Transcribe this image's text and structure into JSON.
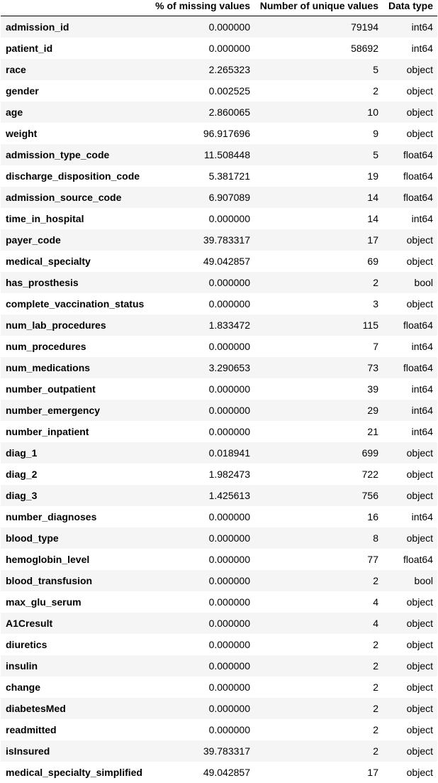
{
  "table": {
    "columns": [
      "",
      "% of missing values",
      "Number of unique values",
      "Data type"
    ],
    "rows": [
      {
        "name": "admission_id",
        "missing": "0.000000",
        "unique": "79194",
        "dtype": "int64"
      },
      {
        "name": "patient_id",
        "missing": "0.000000",
        "unique": "58692",
        "dtype": "int64"
      },
      {
        "name": "race",
        "missing": "2.265323",
        "unique": "5",
        "dtype": "object"
      },
      {
        "name": "gender",
        "missing": "0.002525",
        "unique": "2",
        "dtype": "object"
      },
      {
        "name": "age",
        "missing": "2.860065",
        "unique": "10",
        "dtype": "object"
      },
      {
        "name": "weight",
        "missing": "96.917696",
        "unique": "9",
        "dtype": "object"
      },
      {
        "name": "admission_type_code",
        "missing": "11.508448",
        "unique": "5",
        "dtype": "float64"
      },
      {
        "name": "discharge_disposition_code",
        "missing": "5.381721",
        "unique": "19",
        "dtype": "float64"
      },
      {
        "name": "admission_source_code",
        "missing": "6.907089",
        "unique": "14",
        "dtype": "float64"
      },
      {
        "name": "time_in_hospital",
        "missing": "0.000000",
        "unique": "14",
        "dtype": "int64"
      },
      {
        "name": "payer_code",
        "missing": "39.783317",
        "unique": "17",
        "dtype": "object"
      },
      {
        "name": "medical_specialty",
        "missing": "49.042857",
        "unique": "69",
        "dtype": "object"
      },
      {
        "name": "has_prosthesis",
        "missing": "0.000000",
        "unique": "2",
        "dtype": "bool"
      },
      {
        "name": "complete_vaccination_status",
        "missing": "0.000000",
        "unique": "3",
        "dtype": "object"
      },
      {
        "name": "num_lab_procedures",
        "missing": "1.833472",
        "unique": "115",
        "dtype": "float64"
      },
      {
        "name": "num_procedures",
        "missing": "0.000000",
        "unique": "7",
        "dtype": "int64"
      },
      {
        "name": "num_medications",
        "missing": "3.290653",
        "unique": "73",
        "dtype": "float64"
      },
      {
        "name": "number_outpatient",
        "missing": "0.000000",
        "unique": "39",
        "dtype": "int64"
      },
      {
        "name": "number_emergency",
        "missing": "0.000000",
        "unique": "29",
        "dtype": "int64"
      },
      {
        "name": "number_inpatient",
        "missing": "0.000000",
        "unique": "21",
        "dtype": "int64"
      },
      {
        "name": "diag_1",
        "missing": "0.018941",
        "unique": "699",
        "dtype": "object"
      },
      {
        "name": "diag_2",
        "missing": "1.982473",
        "unique": "722",
        "dtype": "object"
      },
      {
        "name": "diag_3",
        "missing": "1.425613",
        "unique": "756",
        "dtype": "object"
      },
      {
        "name": "number_diagnoses",
        "missing": "0.000000",
        "unique": "16",
        "dtype": "int64"
      },
      {
        "name": "blood_type",
        "missing": "0.000000",
        "unique": "8",
        "dtype": "object"
      },
      {
        "name": "hemoglobin_level",
        "missing": "0.000000",
        "unique": "77",
        "dtype": "float64"
      },
      {
        "name": "blood_transfusion",
        "missing": "0.000000",
        "unique": "2",
        "dtype": "bool"
      },
      {
        "name": "max_glu_serum",
        "missing": "0.000000",
        "unique": "4",
        "dtype": "object"
      },
      {
        "name": "A1Cresult",
        "missing": "0.000000",
        "unique": "4",
        "dtype": "object"
      },
      {
        "name": "diuretics",
        "missing": "0.000000",
        "unique": "2",
        "dtype": "object"
      },
      {
        "name": "insulin",
        "missing": "0.000000",
        "unique": "2",
        "dtype": "object"
      },
      {
        "name": "change",
        "missing": "0.000000",
        "unique": "2",
        "dtype": "object"
      },
      {
        "name": "diabetesMed",
        "missing": "0.000000",
        "unique": "2",
        "dtype": "object"
      },
      {
        "name": "readmitted",
        "missing": "0.000000",
        "unique": "2",
        "dtype": "object"
      },
      {
        "name": "isInsured",
        "missing": "39.783317",
        "unique": "2",
        "dtype": "object"
      },
      {
        "name": "medical_specialty_simplified",
        "missing": "49.042857",
        "unique": "17",
        "dtype": "object"
      }
    ]
  },
  "colors": {
    "stripe": "#f5f5f5",
    "header_rule": "#000000"
  }
}
